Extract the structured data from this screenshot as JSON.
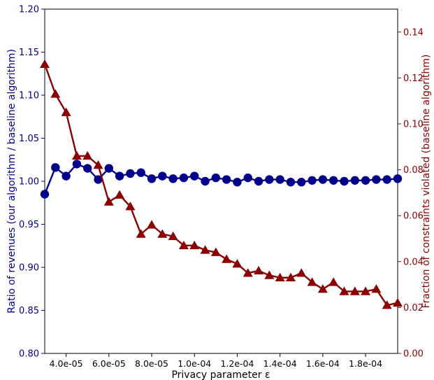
{
  "chart_data": {
    "type": "line",
    "xlabel": "Privacy parameter ε",
    "ylabel_left": "Ratio of revenues (our algorithm / baseline algorithm)",
    "ylabel_right": "Fraction of constraints violated (baseline algorithm)",
    "x_ticks": [
      4e-05,
      6e-05,
      8e-05,
      0.0001,
      0.00012,
      0.00014,
      0.00016,
      0.00018
    ],
    "x_tick_labels": [
      "4.0e-05",
      "6.0e-05",
      "8.0e-05",
      "1.0e-04",
      "1.2e-04",
      "1.4e-04",
      "1.6e-04",
      "1.8e-04"
    ],
    "xlim": [
      3e-05,
      0.000195
    ],
    "left_axis": {
      "ylim": [
        0.8,
        1.2
      ],
      "ticks": [
        "0.80",
        "0.85",
        "0.90",
        "0.95",
        "1.00",
        "1.05",
        "1.10",
        "1.15",
        "1.20"
      ]
    },
    "right_axis": {
      "ylim": [
        0.0,
        0.15
      ],
      "ticks": [
        "0.00",
        "0.02",
        "0.04",
        "0.06",
        "0.08",
        "0.10",
        "0.12",
        "0.14"
      ]
    },
    "x": [
      3e-05,
      3.5e-05,
      4e-05,
      4.5e-05,
      5e-05,
      5.5e-05,
      6e-05,
      6.5e-05,
      7e-05,
      7.5e-05,
      8e-05,
      8.5e-05,
      9e-05,
      9.5e-05,
      0.0001,
      0.000105,
      0.00011,
      0.000115,
      0.00012,
      0.000125,
      0.00013,
      0.000135,
      0.00014,
      0.000145,
      0.00015,
      0.000155,
      0.00016,
      0.000165,
      0.00017,
      0.000175,
      0.00018,
      0.000185,
      0.00019,
      0.000195
    ],
    "series": [
      {
        "axis": "left",
        "marker": "circle",
        "color": "#00008B",
        "values": [
          0.985,
          1.016,
          1.006,
          1.02,
          1.015,
          1.002,
          1.015,
          1.006,
          1.009,
          1.01,
          1.003,
          1.006,
          1.003,
          1.004,
          1.006,
          1.0,
          1.004,
          1.002,
          0.999,
          1.004,
          1.0,
          1.002,
          1.002,
          0.999,
          0.999,
          1.001,
          1.002,
          1.001,
          1.0,
          1.001,
          1.001,
          1.002,
          1.002,
          1.003
        ]
      },
      {
        "axis": "right",
        "marker": "triangle",
        "color": "#8B0000",
        "values": [
          0.126,
          0.113,
          0.105,
          0.086,
          0.086,
          0.082,
          0.066,
          0.069,
          0.064,
          0.052,
          0.056,
          0.052,
          0.051,
          0.047,
          0.047,
          0.045,
          0.044,
          0.041,
          0.039,
          0.035,
          0.036,
          0.034,
          0.033,
          0.033,
          0.035,
          0.031,
          0.028,
          0.031,
          0.027,
          0.027,
          0.027,
          0.028,
          0.021,
          0.022
        ]
      }
    ]
  }
}
